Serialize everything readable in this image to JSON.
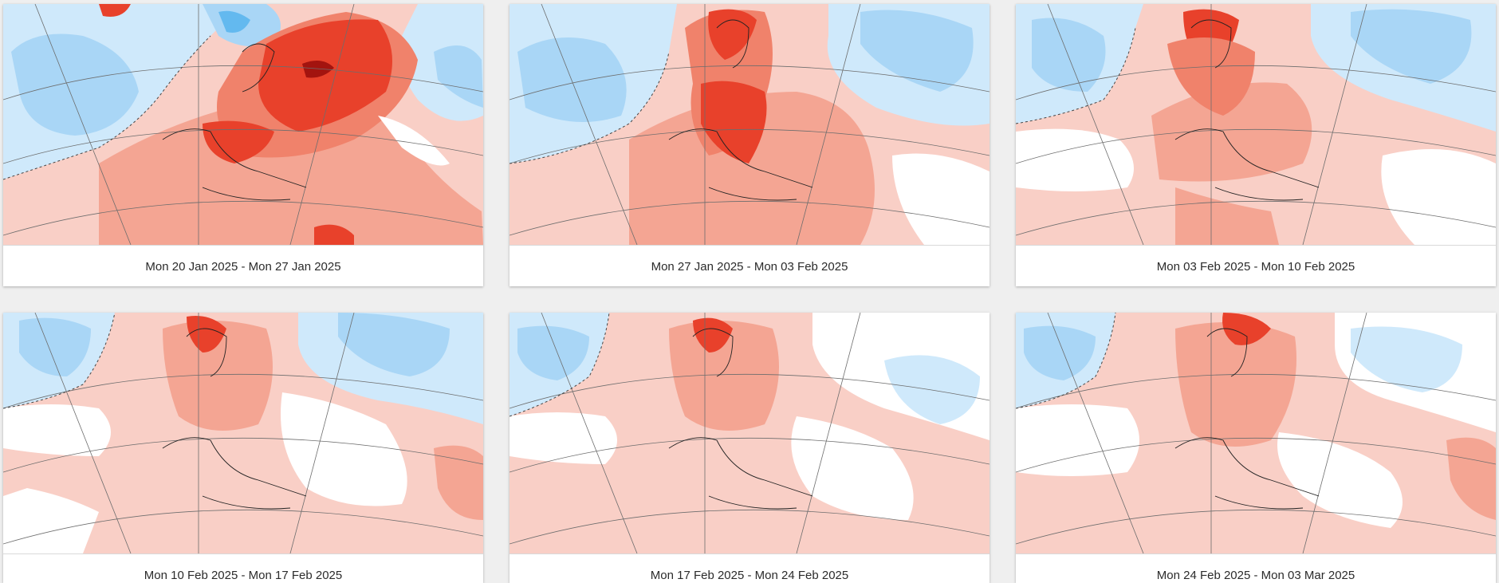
{
  "panels": [
    {
      "caption": "Mon 20 Jan 2025 - Mon 27 Jan 2025",
      "variant": 0
    },
    {
      "caption": "Mon 27 Jan 2025 - Mon 03 Feb 2025",
      "variant": 1
    },
    {
      "caption": "Mon 03 Feb 2025 - Mon 10 Feb 2025",
      "variant": 2
    },
    {
      "caption": "Mon 10 Feb 2025 - Mon 17 Feb 2025",
      "variant": 3
    },
    {
      "caption": "Mon 17 Feb 2025 - Mon 24 Feb 2025",
      "variant": 4
    },
    {
      "caption": "Mon 24 Feb 2025 - Mon 03 Mar 2025",
      "variant": 5
    }
  ],
  "colors": {
    "warm_light": "#f9cfc6",
    "warm_mid": "#f4a593",
    "warm_strong": "#f0826b",
    "warm_intense": "#e8412b",
    "warm_extreme": "#a3140f",
    "cool_light": "#cfe9fb",
    "cool_mid": "#a9d6f6",
    "cool_strong": "#63b9ef",
    "neutral": "#ffffff"
  }
}
